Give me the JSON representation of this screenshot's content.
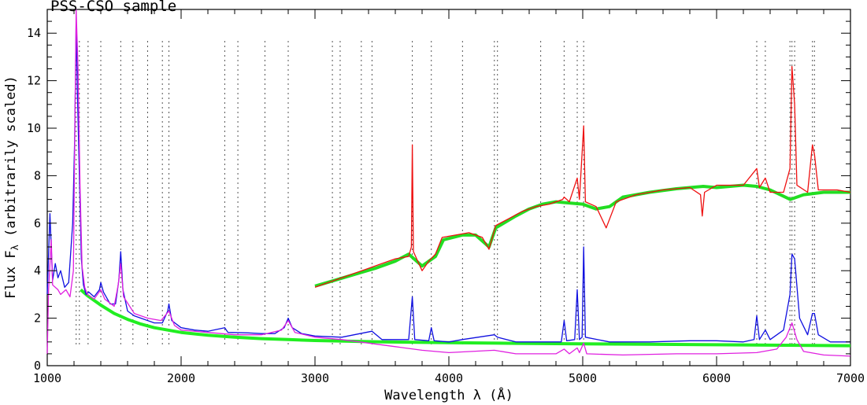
{
  "chart_data": {
    "type": "line",
    "title": "PSS-CSO sample",
    "xlabel": "Wavelength λ (Å)",
    "ylabel_main": "Flux F",
    "ylabel_sub": "λ",
    "ylabel_suffix": " (arbitrarily scaled)",
    "xlim": [
      1000,
      7000
    ],
    "ylim": [
      0,
      15
    ],
    "x_ticks": [
      1000,
      2000,
      3000,
      4000,
      5000,
      6000,
      7000
    ],
    "y_ticks": [
      0,
      2,
      4,
      6,
      8,
      10,
      12,
      14
    ],
    "grid": false,
    "colors": {
      "blue": "#1010e0",
      "magenta": "#e020e0",
      "green_lower": "#22ee22",
      "green_upper": "#22dd22",
      "red": "#ee1010",
      "lines": "#555555"
    },
    "line_markers": [
      1216,
      1240,
      1305,
      1400,
      1549,
      1640,
      1750,
      1860,
      1909,
      2326,
      2424,
      2626,
      2800,
      3130,
      3188,
      3346,
      3426,
      3727,
      3869,
      4102,
      4340,
      4363,
      4686,
      4861,
      4959,
      5007,
      6300,
      6364,
      6548,
      6563,
      6583,
      6716,
      6731
    ],
    "series": [
      {
        "key": "blue",
        "points": [
          [
            1000,
            3.0
          ],
          [
            1020,
            6.4
          ],
          [
            1040,
            3.6
          ],
          [
            1060,
            4.3
          ],
          [
            1080,
            3.7
          ],
          [
            1100,
            4.0
          ],
          [
            1130,
            3.3
          ],
          [
            1160,
            3.5
          ],
          [
            1190,
            6.0
          ],
          [
            1205,
            9.5
          ],
          [
            1216,
            14.5
          ],
          [
            1225,
            11.5
          ],
          [
            1240,
            8.0
          ],
          [
            1255,
            4.5
          ],
          [
            1270,
            3.4
          ],
          [
            1290,
            3.0
          ],
          [
            1310,
            3.1
          ],
          [
            1350,
            2.9
          ],
          [
            1390,
            3.2
          ],
          [
            1400,
            3.5
          ],
          [
            1420,
            3.1
          ],
          [
            1470,
            2.6
          ],
          [
            1510,
            2.6
          ],
          [
            1535,
            3.6
          ],
          [
            1549,
            4.8
          ],
          [
            1565,
            3.2
          ],
          [
            1600,
            2.3
          ],
          [
            1650,
            2.1
          ],
          [
            1700,
            2.0
          ],
          [
            1800,
            1.8
          ],
          [
            1860,
            1.8
          ],
          [
            1900,
            2.3
          ],
          [
            1909,
            2.6
          ],
          [
            1930,
            1.9
          ],
          [
            2000,
            1.6
          ],
          [
            2100,
            1.5
          ],
          [
            2200,
            1.45
          ],
          [
            2326,
            1.6
          ],
          [
            2350,
            1.4
          ],
          [
            2500,
            1.38
          ],
          [
            2600,
            1.35
          ],
          [
            2700,
            1.35
          ],
          [
            2770,
            1.6
          ],
          [
            2800,
            2.0
          ],
          [
            2830,
            1.6
          ],
          [
            2900,
            1.35
          ],
          [
            3000,
            1.25
          ],
          [
            3200,
            1.2
          ],
          [
            3426,
            1.45
          ],
          [
            3500,
            1.1
          ],
          [
            3700,
            1.1
          ],
          [
            3727,
            2.9
          ],
          [
            3745,
            1.1
          ],
          [
            3850,
            1.05
          ],
          [
            3869,
            1.6
          ],
          [
            3890,
            1.05
          ],
          [
            4000,
            1.0
          ],
          [
            4100,
            1.1
          ],
          [
            4340,
            1.3
          ],
          [
            4363,
            1.2
          ],
          [
            4500,
            1.0
          ],
          [
            4700,
            1.0
          ],
          [
            4840,
            1.0
          ],
          [
            4861,
            1.9
          ],
          [
            4880,
            1.05
          ],
          [
            4940,
            1.1
          ],
          [
            4959,
            3.2
          ],
          [
            4975,
            1.1
          ],
          [
            4995,
            1.2
          ],
          [
            5007,
            5.0
          ],
          [
            5020,
            1.2
          ],
          [
            5200,
            1.0
          ],
          [
            5500,
            1.0
          ],
          [
            5800,
            1.05
          ],
          [
            6000,
            1.05
          ],
          [
            6200,
            1.0
          ],
          [
            6280,
            1.1
          ],
          [
            6300,
            2.1
          ],
          [
            6320,
            1.1
          ],
          [
            6364,
            1.5
          ],
          [
            6400,
            1.1
          ],
          [
            6500,
            1.5
          ],
          [
            6548,
            3.0
          ],
          [
            6563,
            4.7
          ],
          [
            6583,
            4.5
          ],
          [
            6620,
            2.0
          ],
          [
            6680,
            1.3
          ],
          [
            6716,
            2.2
          ],
          [
            6731,
            2.2
          ],
          [
            6760,
            1.3
          ],
          [
            6850,
            1.0
          ],
          [
            7000,
            1.0
          ]
        ]
      },
      {
        "key": "magenta",
        "points": [
          [
            1000,
            0.5
          ],
          [
            1010,
            3.2
          ],
          [
            1030,
            5.3
          ],
          [
            1040,
            3.4
          ],
          [
            1080,
            3.2
          ],
          [
            1100,
            3.0
          ],
          [
            1140,
            3.2
          ],
          [
            1170,
            2.9
          ],
          [
            1195,
            4.0
          ],
          [
            1205,
            9.0
          ],
          [
            1216,
            15.0
          ],
          [
            1230,
            12.5
          ],
          [
            1245,
            7.5
          ],
          [
            1260,
            4.2
          ],
          [
            1280,
            3.3
          ],
          [
            1300,
            3.0
          ],
          [
            1350,
            2.8
          ],
          [
            1400,
            3.2
          ],
          [
            1430,
            2.8
          ],
          [
            1500,
            2.5
          ],
          [
            1530,
            3.4
          ],
          [
            1549,
            4.3
          ],
          [
            1570,
            2.9
          ],
          [
            1650,
            2.2
          ],
          [
            1750,
            2.0
          ],
          [
            1850,
            1.9
          ],
          [
            1909,
            2.3
          ],
          [
            1950,
            1.7
          ],
          [
            2000,
            1.5
          ],
          [
            2200,
            1.4
          ],
          [
            2400,
            1.3
          ],
          [
            2600,
            1.3
          ],
          [
            2750,
            1.5
          ],
          [
            2800,
            1.9
          ],
          [
            2850,
            1.4
          ],
          [
            3000,
            1.2
          ],
          [
            3200,
            1.1
          ],
          [
            3400,
            0.95
          ],
          [
            3600,
            0.8
          ],
          [
            3800,
            0.65
          ],
          [
            4000,
            0.55
          ],
          [
            4340,
            0.65
          ],
          [
            4500,
            0.5
          ],
          [
            4800,
            0.5
          ],
          [
            4861,
            0.7
          ],
          [
            4900,
            0.5
          ],
          [
            4959,
            0.75
          ],
          [
            4975,
            0.55
          ],
          [
            5007,
            0.95
          ],
          [
            5030,
            0.5
          ],
          [
            5300,
            0.45
          ],
          [
            5700,
            0.5
          ],
          [
            6000,
            0.5
          ],
          [
            6300,
            0.55
          ],
          [
            6450,
            0.7
          ],
          [
            6520,
            1.2
          ],
          [
            6563,
            1.8
          ],
          [
            6600,
            1.1
          ],
          [
            6650,
            0.6
          ],
          [
            6800,
            0.45
          ],
          [
            7000,
            0.4
          ]
        ]
      },
      {
        "key": "green_lower",
        "points": [
          [
            1250,
            3.2
          ],
          [
            1300,
            2.95
          ],
          [
            1400,
            2.55
          ],
          [
            1500,
            2.2
          ],
          [
            1600,
            1.95
          ],
          [
            1700,
            1.75
          ],
          [
            1800,
            1.6
          ],
          [
            2000,
            1.4
          ],
          [
            2200,
            1.28
          ],
          [
            2400,
            1.2
          ],
          [
            2600,
            1.14
          ],
          [
            2800,
            1.1
          ],
          [
            3000,
            1.06
          ],
          [
            3500,
            1.0
          ],
          [
            4000,
            0.97
          ],
          [
            4500,
            0.94
          ],
          [
            5000,
            0.92
          ],
          [
            5500,
            0.9
          ],
          [
            6000,
            0.88
          ],
          [
            6500,
            0.86
          ],
          [
            7000,
            0.84
          ]
        ]
      },
      {
        "key": "green_upper",
        "points": [
          [
            3000,
            3.35
          ],
          [
            3150,
            3.6
          ],
          [
            3300,
            3.85
          ],
          [
            3450,
            4.1
          ],
          [
            3600,
            4.4
          ],
          [
            3700,
            4.7
          ],
          [
            3800,
            4.2
          ],
          [
            3900,
            4.6
          ],
          [
            3960,
            5.3
          ],
          [
            4100,
            5.5
          ],
          [
            4200,
            5.5
          ],
          [
            4300,
            5.0
          ],
          [
            4350,
            5.8
          ],
          [
            4500,
            6.3
          ],
          [
            4600,
            6.6
          ],
          [
            4700,
            6.8
          ],
          [
            4800,
            6.9
          ],
          [
            4900,
            6.85
          ],
          [
            5000,
            6.8
          ],
          [
            5100,
            6.6
          ],
          [
            5200,
            6.7
          ],
          [
            5300,
            7.1
          ],
          [
            5500,
            7.3
          ],
          [
            5700,
            7.45
          ],
          [
            5900,
            7.55
          ],
          [
            6000,
            7.5
          ],
          [
            6200,
            7.6
          ],
          [
            6300,
            7.55
          ],
          [
            6400,
            7.4
          ],
          [
            6550,
            7.0
          ],
          [
            6650,
            7.2
          ],
          [
            6800,
            7.3
          ],
          [
            7000,
            7.3
          ]
        ]
      },
      {
        "key": "red",
        "points": [
          [
            3000,
            3.3
          ],
          [
            3100,
            3.5
          ],
          [
            3200,
            3.7
          ],
          [
            3300,
            3.9
          ],
          [
            3400,
            4.1
          ],
          [
            3500,
            4.3
          ],
          [
            3600,
            4.5
          ],
          [
            3700,
            4.6
          ],
          [
            3720,
            5.0
          ],
          [
            3727,
            9.3
          ],
          [
            3735,
            4.8
          ],
          [
            3800,
            4.0
          ],
          [
            3850,
            4.4
          ],
          [
            3900,
            4.7
          ],
          [
            3950,
            5.4
          ],
          [
            4050,
            5.5
          ],
          [
            4150,
            5.6
          ],
          [
            4250,
            5.4
          ],
          [
            4300,
            4.9
          ],
          [
            4350,
            5.9
          ],
          [
            4450,
            6.2
          ],
          [
            4550,
            6.5
          ],
          [
            4650,
            6.7
          ],
          [
            4750,
            6.8
          ],
          [
            4850,
            7.0
          ],
          [
            4861,
            7.1
          ],
          [
            4900,
            6.9
          ],
          [
            4959,
            7.9
          ],
          [
            4975,
            7.0
          ],
          [
            5007,
            10.1
          ],
          [
            5020,
            6.9
          ],
          [
            5100,
            6.7
          ],
          [
            5175,
            5.8
          ],
          [
            5250,
            6.9
          ],
          [
            5400,
            7.2
          ],
          [
            5600,
            7.4
          ],
          [
            5800,
            7.5
          ],
          [
            5880,
            7.2
          ],
          [
            5893,
            6.3
          ],
          [
            5910,
            7.3
          ],
          [
            6000,
            7.6
          ],
          [
            6200,
            7.6
          ],
          [
            6300,
            8.3
          ],
          [
            6320,
            7.5
          ],
          [
            6364,
            7.9
          ],
          [
            6400,
            7.3
          ],
          [
            6500,
            7.3
          ],
          [
            6548,
            8.3
          ],
          [
            6563,
            12.6
          ],
          [
            6583,
            11.0
          ],
          [
            6600,
            7.6
          ],
          [
            6680,
            7.3
          ],
          [
            6716,
            9.3
          ],
          [
            6731,
            8.9
          ],
          [
            6760,
            7.4
          ],
          [
            6900,
            7.4
          ],
          [
            7000,
            7.3
          ]
        ]
      }
    ]
  }
}
